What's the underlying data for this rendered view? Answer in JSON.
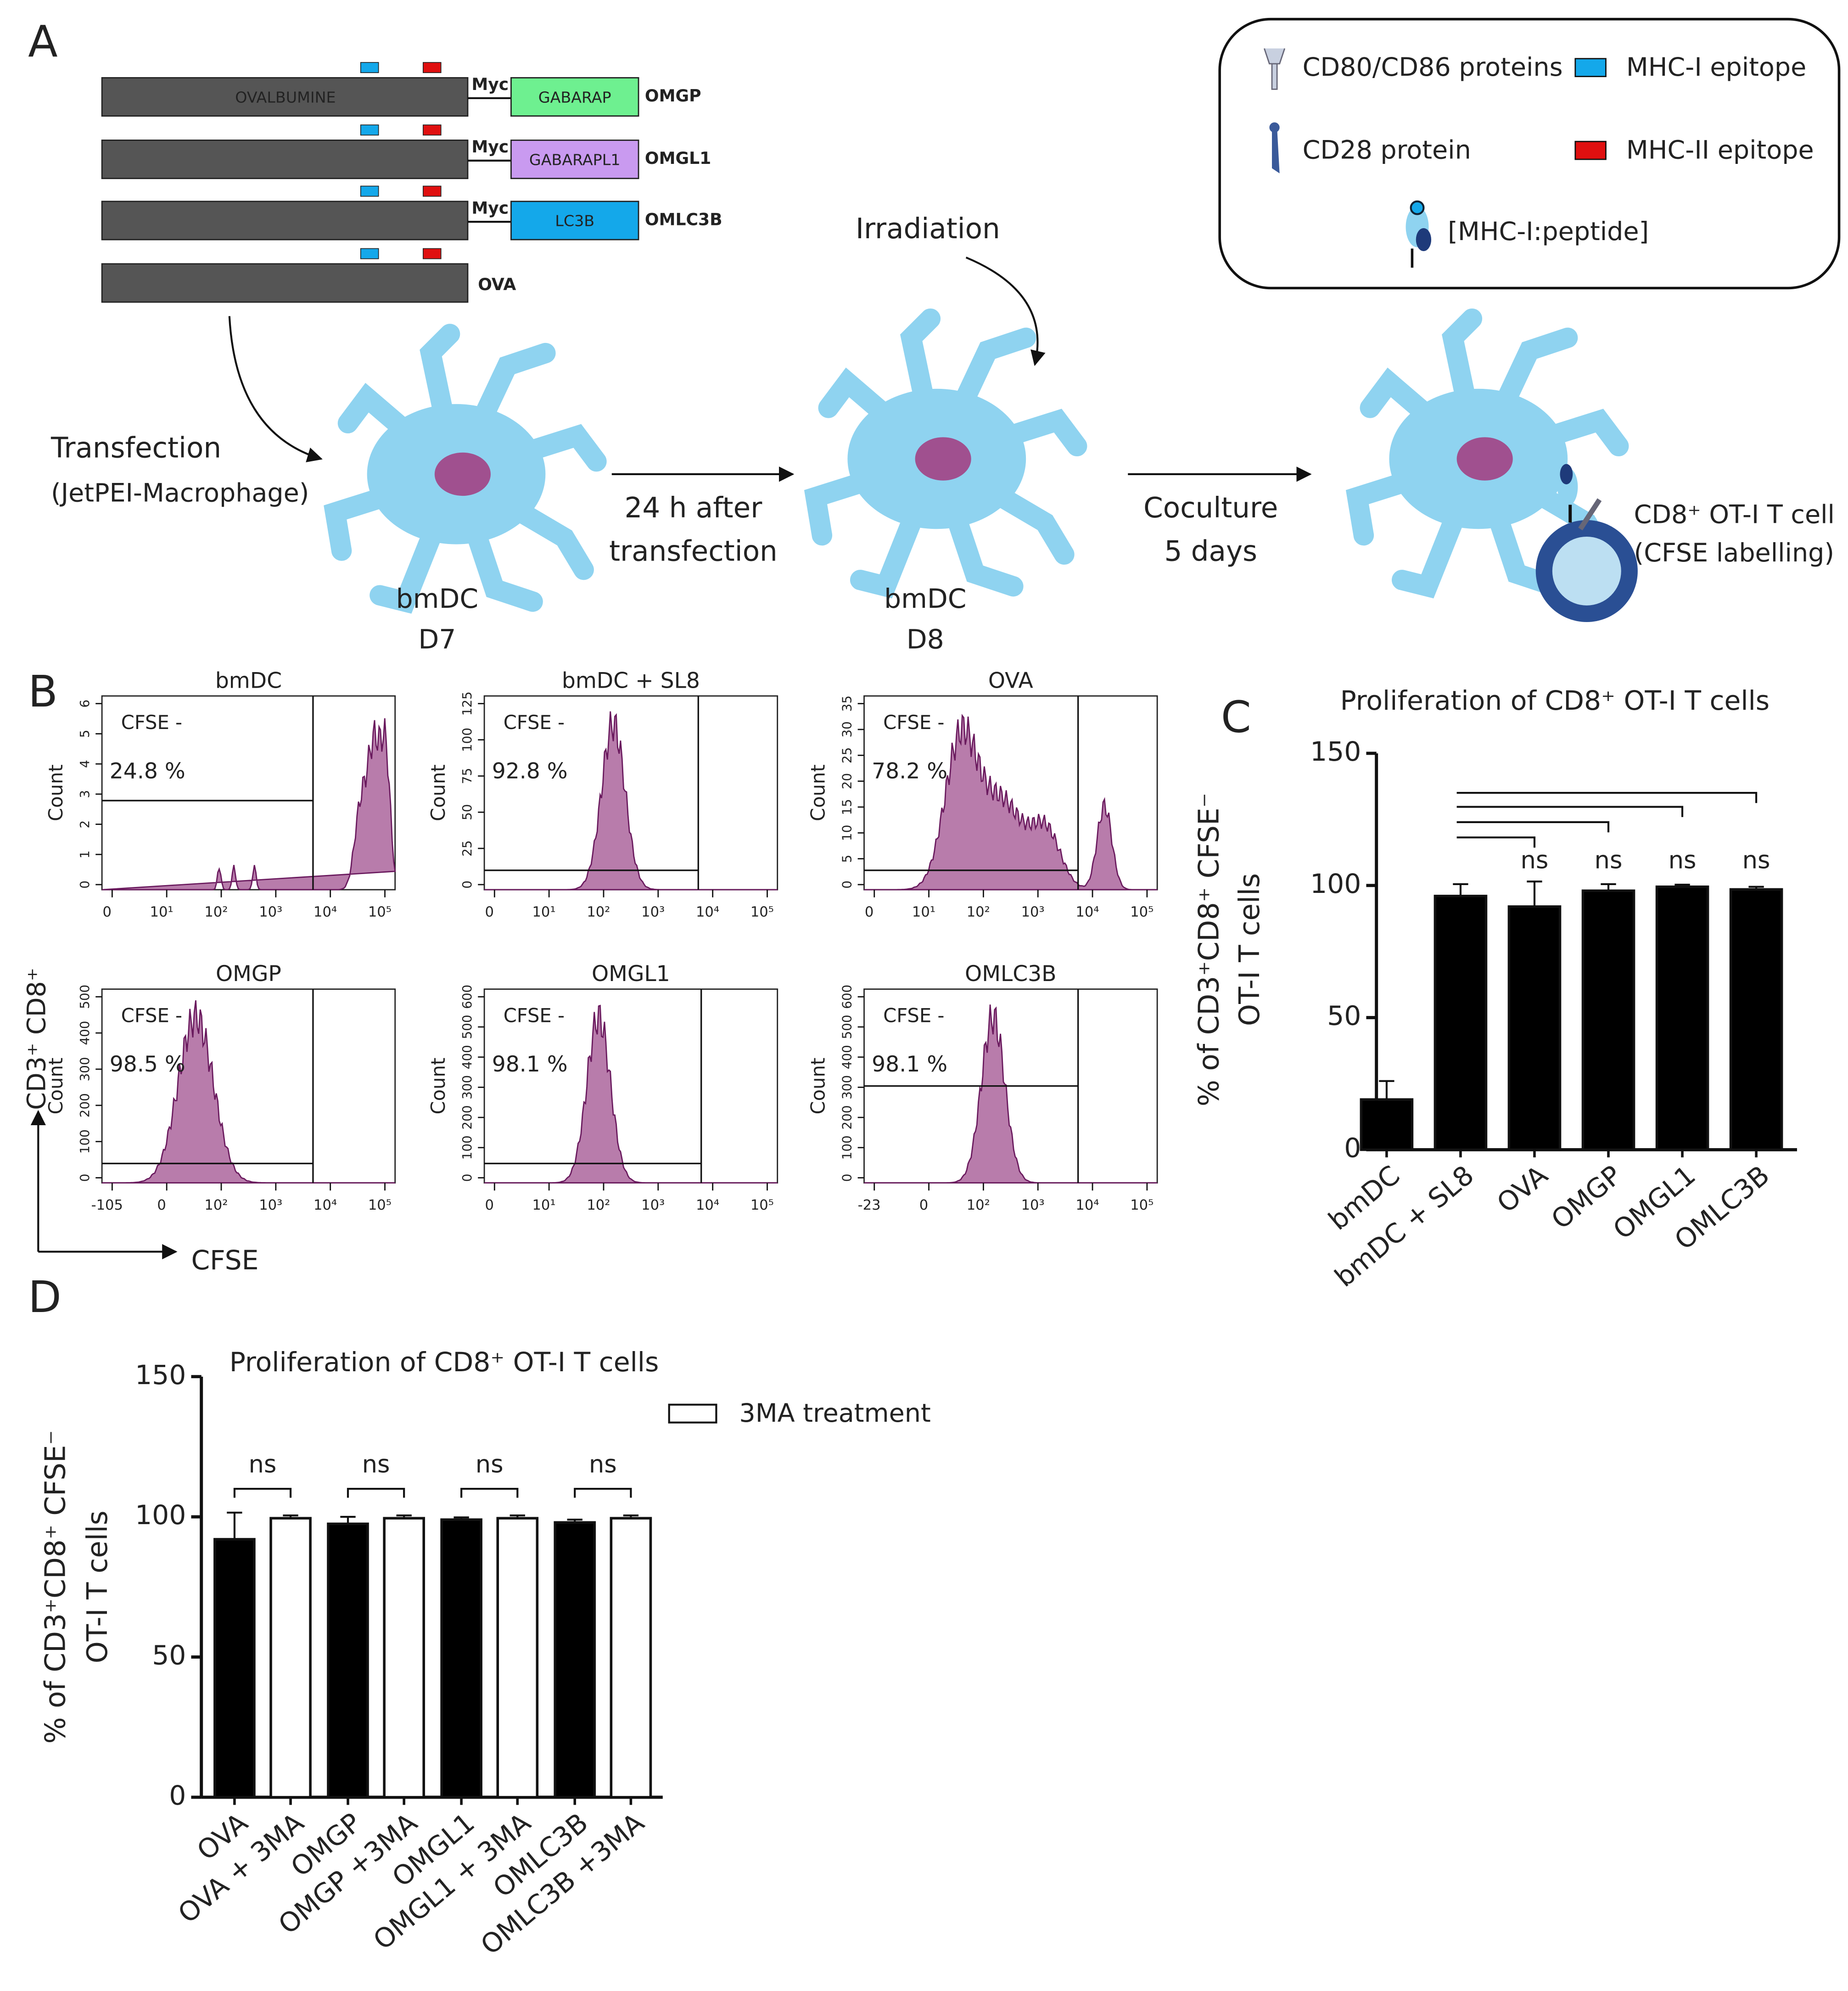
{
  "panel_labels": [
    "A",
    "B",
    "C",
    "D"
  ],
  "constructs": {
    "backbone_label": "OVALBUMINE",
    "rows": [
      {
        "linker": "Myc",
        "tag": "GABARAP",
        "tag_color": "#6ef090",
        "name": "OMGP"
      },
      {
        "linker": "Myc",
        "tag": "GABARAPL1",
        "tag_color": "#c99af0",
        "name": "OMGL1"
      },
      {
        "linker": "Myc",
        "tag": "LC3B",
        "tag_color": "#14a8ea",
        "name": "OMLC3B"
      },
      {
        "name": "OVA"
      }
    ]
  },
  "legend": [
    {
      "label": "CD80/CD86 proteins"
    },
    {
      "label": "MHC-I epitope",
      "color": "#14a8ea"
    },
    {
      "label": "CD28 protein"
    },
    {
      "label": "MHC-II epitope",
      "color": "#e01010"
    },
    {
      "label": "[MHC-I:peptide]"
    }
  ],
  "workflow": {
    "transfection": [
      "Transfection",
      "(JetPEI-Macrophage)"
    ],
    "step1": [
      "24 h after",
      "transfection"
    ],
    "day7": [
      "bmDC",
      "D7"
    ],
    "irradiation": "Irradiation",
    "day8": [
      "bmDC",
      "D8"
    ],
    "step2": [
      "Coculture",
      "5 days"
    ],
    "tcell": [
      "CD8⁺ OT-I T cell",
      "(CFSE labelling)"
    ]
  },
  "flow": {
    "y_axis": "CD3⁺ CD8⁺",
    "x_axis": "CFSE",
    "panels": [
      {
        "title": "bmDC",
        "gate": "CFSE -",
        "percent": "24.8 %",
        "ylabel": "Count",
        "xticks": [
          "0",
          "10¹",
          "10²",
          "10³",
          "10⁴",
          "10⁵"
        ],
        "yticks": [
          "0",
          "1",
          "2",
          "3",
          "4",
          "5",
          "6"
        ]
      },
      {
        "title": "bmDC + SL8",
        "gate": "CFSE -",
        "percent": "92.8 %",
        "ylabel": "Count",
        "xticks": [
          "0",
          "10¹",
          "10²",
          "10³",
          "10⁴",
          "10⁵"
        ],
        "yticks": [
          "0",
          "25",
          "50",
          "75",
          "100",
          "125"
        ]
      },
      {
        "title": "OVA",
        "gate": "CFSE -",
        "percent": "78.2 %",
        "ylabel": "Count",
        "xticks": [
          "0",
          "10¹",
          "10²",
          "10³",
          "10⁴",
          "10⁵"
        ],
        "yticks": [
          "0",
          "5",
          "10",
          "15",
          "20",
          "25",
          "30",
          "35"
        ]
      },
      {
        "title": "OMGP",
        "gate": "CFSE -",
        "percent": "98.5 %",
        "ylabel": "Count",
        "xticks": [
          "-105",
          "0",
          "10²",
          "10³",
          "10⁴",
          "10⁵"
        ],
        "yticks": [
          "0",
          "100",
          "200",
          "300",
          "400",
          "500"
        ]
      },
      {
        "title": "OMGL1",
        "gate": "CFSE -",
        "percent": "98.1 %",
        "ylabel": "Count",
        "xticks": [
          "0",
          "10¹",
          "10²",
          "10³",
          "10⁴",
          "10⁵"
        ],
        "yticks": [
          "0",
          "100",
          "200",
          "300",
          "400",
          "500",
          "600"
        ]
      },
      {
        "title": "OMLC3B",
        "gate": "CFSE -",
        "percent": "98.1 %",
        "ylabel": "Count",
        "xticks": [
          "-23",
          "0",
          "10²",
          "10³",
          "10⁴",
          "10⁵"
        ],
        "yticks": [
          "0",
          "100",
          "200",
          "300",
          "400",
          "500",
          "600"
        ]
      }
    ]
  },
  "chart_data": [
    {
      "type": "bar",
      "title": "Proliferation of CD8⁺ OT-I T cells",
      "ylabel": [
        "% of CD3⁺CD8⁺ CFSE⁻",
        "OT-I T cells"
      ],
      "categories": [
        "bmDC",
        "bmDC + SL8",
        "OVA",
        "OMGP",
        "OMGL1",
        "OMLC3B"
      ],
      "values": [
        19,
        96,
        92,
        98,
        99.5,
        98.5
      ],
      "errors": [
        7,
        4.5,
        9.5,
        2.5,
        0.8,
        1
      ],
      "color": "#000000",
      "ylim": [
        0,
        150
      ],
      "yticks": [
        0,
        50,
        100,
        150
      ],
      "annotations": [
        "ns",
        "ns",
        "ns",
        "ns"
      ]
    },
    {
      "type": "bar",
      "title": "Proliferation of CD8⁺ OT-I T cells",
      "ylabel": [
        "% of CD3⁺CD8⁺ CFSE⁻",
        "OT-I T cells"
      ],
      "categories": [
        "OVA",
        "OVA + 3MA",
        "OMGP",
        "OMGP +3MA",
        "OMGL1",
        "OMGL1 + 3MA",
        "OMLC3B",
        "OMLC3B +3MA"
      ],
      "values": [
        92,
        99.5,
        97.5,
        99.5,
        99,
        99.5,
        98,
        99.5
      ],
      "errors": [
        9.5,
        1,
        2.5,
        1,
        0.8,
        1,
        1,
        1
      ],
      "colors": [
        "#000000",
        "#ffffff",
        "#000000",
        "#ffffff",
        "#000000",
        "#ffffff",
        "#000000",
        "#ffffff"
      ],
      "legend": {
        "label": "3MA treatment",
        "color": "#ffffff"
      },
      "ylim": [
        0,
        150
      ],
      "yticks": [
        0,
        50,
        100,
        150
      ],
      "annotations": [
        "ns",
        "ns",
        "ns",
        "ns"
      ]
    }
  ]
}
